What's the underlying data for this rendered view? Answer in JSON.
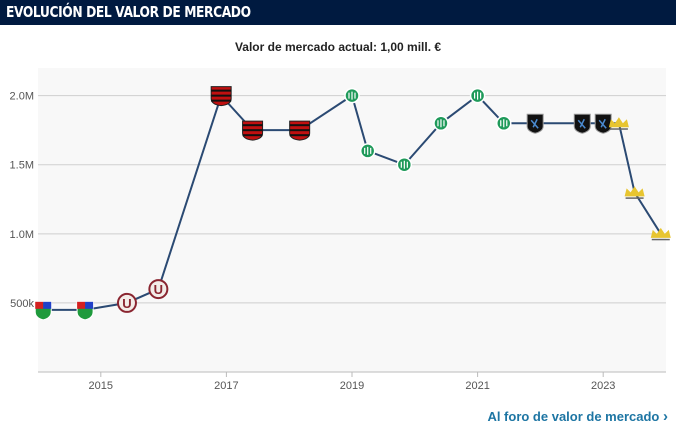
{
  "header": {
    "title": "EVOLUCIÓN DEL VALOR DE MERCADO"
  },
  "footer": {
    "link": "Al foro de valor de mercado",
    "chevron_icon": "chevron-right-icon"
  },
  "colors": {
    "header_bg": "#001a40",
    "line": "#2b4a73",
    "link": "#1d75a3"
  },
  "chart_data": {
    "type": "line",
    "title": "Valor de mercado actual: 1,00 mill. €",
    "xlabel": "",
    "ylabel": "",
    "x_ticks": [
      "2015",
      "2017",
      "2019",
      "2021",
      "2023"
    ],
    "y_ticks": [
      "500k",
      "1.0M",
      "1.5M",
      "2.0M"
    ],
    "y_tick_values": [
      500000,
      1000000,
      1500000,
      2000000
    ],
    "xlim": [
      "2014-01",
      "2024-01"
    ],
    "ylim": [
      0,
      2200000
    ],
    "grid": true,
    "points": [
      {
        "date": "2014-02",
        "value": 450000,
        "club_logo": "cd-uc-shield"
      },
      {
        "date": "2014-10",
        "value": 450000,
        "club_logo": "cd-uc-shield"
      },
      {
        "date": "2015-06",
        "value": 500000,
        "club_logo": "u-circle"
      },
      {
        "date": "2015-12",
        "value": 600000,
        "club_logo": "u-circle"
      },
      {
        "date": "2016-12",
        "value": 2000000,
        "club_logo": "red-black-crest"
      },
      {
        "date": "2017-06",
        "value": 1750000,
        "club_logo": "red-black-crest"
      },
      {
        "date": "2018-03",
        "value": 1750000,
        "club_logo": "red-black-crest"
      },
      {
        "date": "2019-01",
        "value": 2000000,
        "club_logo": "green-circle"
      },
      {
        "date": "2019-04",
        "value": 1600000,
        "club_logo": "green-circle"
      },
      {
        "date": "2019-11",
        "value": 1500000,
        "club_logo": "green-circle"
      },
      {
        "date": "2020-06",
        "value": 1800000,
        "club_logo": "green-circle"
      },
      {
        "date": "2021-01",
        "value": 2000000,
        "club_logo": "green-circle"
      },
      {
        "date": "2021-06",
        "value": 1800000,
        "club_logo": "green-circle"
      },
      {
        "date": "2021-12",
        "value": 1800000,
        "club_logo": "black-blue-shield"
      },
      {
        "date": "2022-09",
        "value": 1800000,
        "club_logo": "black-blue-shield"
      },
      {
        "date": "2023-01",
        "value": 1800000,
        "club_logo": "black-blue-shield"
      },
      {
        "date": "2023-04",
        "value": 1800000,
        "club_logo": "yellow-crown"
      },
      {
        "date": "2023-07",
        "value": 1300000,
        "club_logo": "yellow-crown"
      },
      {
        "date": "2023-12",
        "value": 1000000,
        "club_logo": "yellow-crown"
      }
    ]
  }
}
